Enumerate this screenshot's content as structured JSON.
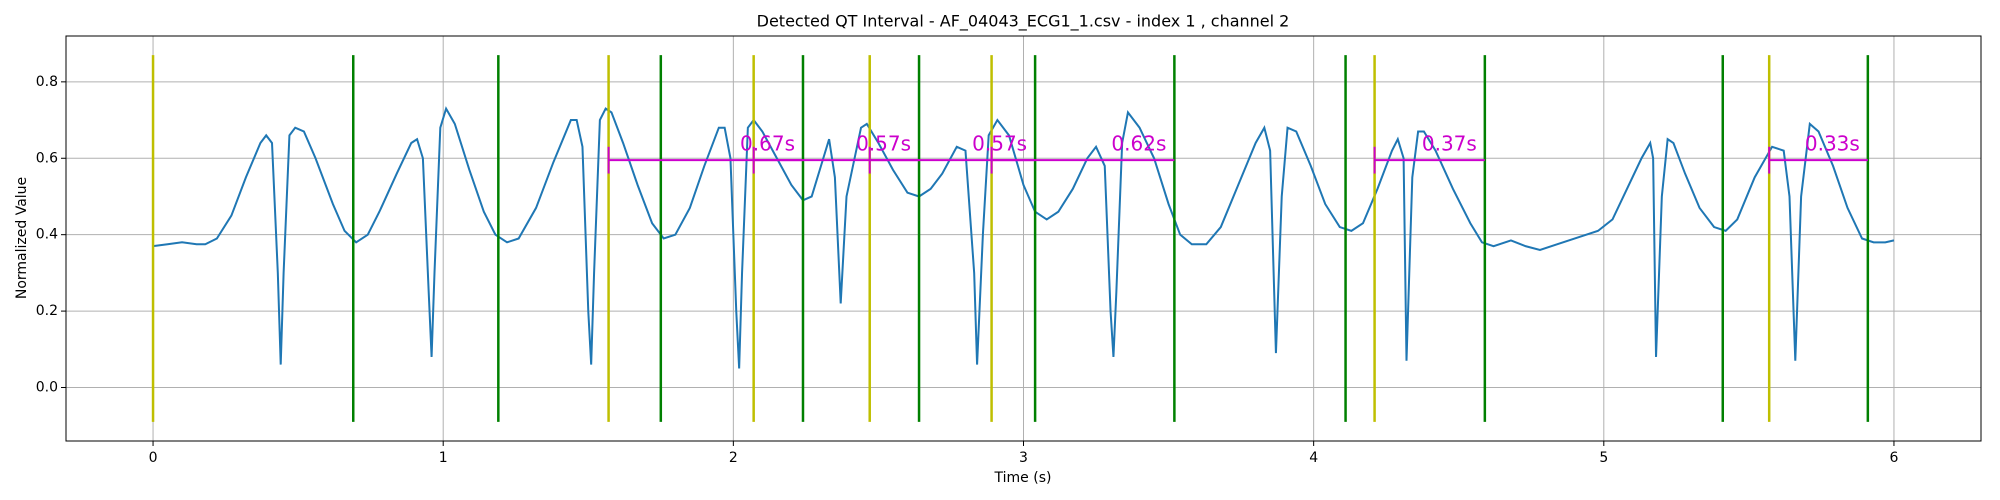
{
  "chart_data": {
    "type": "line",
    "title": "Detected QT Interval - AF_04043_ECG1_1.csv - index 1 , channel 2",
    "x_label": "Time (s)",
    "y_label": "Normalized Value",
    "color": "#1f77b4",
    "x": [
      0,
      0.05,
      0.1,
      0.15,
      0.18,
      0.22,
      0.27,
      0.32,
      0.37,
      0.39,
      0.41,
      0.43,
      0.44,
      0.45,
      0.47,
      0.49,
      0.52,
      0.56,
      0.62,
      0.66,
      0.7,
      0.74,
      0.78,
      0.84,
      0.89,
      0.91,
      0.93,
      0.95,
      0.96,
      0.97,
      0.99,
      1.01,
      1.04,
      1.09,
      1.14,
      1.18,
      1.22,
      1.26,
      1.32,
      1.38,
      1.44,
      1.46,
      1.48,
      1.5,
      1.51,
      1.52,
      1.54,
      1.56,
      1.58,
      1.62,
      1.67,
      1.72,
      1.76,
      1.8,
      1.85,
      1.9,
      1.95,
      1.97,
      1.99,
      2.01,
      2.02,
      2.03,
      2.05,
      2.07,
      2.1,
      2.15,
      2.2,
      2.24,
      2.27,
      2.31,
      2.33,
      2.35,
      2.37,
      2.39,
      2.44,
      2.46,
      2.5,
      2.55,
      2.6,
      2.64,
      2.68,
      2.72,
      2.77,
      2.8,
      2.83,
      2.84,
      2.86,
      2.88,
      2.91,
      2.95,
      3.0,
      3.04,
      3.08,
      3.12,
      3.17,
      3.22,
      3.25,
      3.28,
      3.3,
      3.31,
      3.32,
      3.34,
      3.36,
      3.4,
      3.45,
      3.5,
      3.54,
      3.58,
      3.63,
      3.68,
      3.74,
      3.8,
      3.83,
      3.85,
      3.87,
      3.89,
      3.91,
      3.94,
      3.99,
      4.04,
      4.09,
      4.13,
      4.17,
      4.22,
      4.27,
      4.29,
      4.31,
      4.32,
      4.34,
      4.36,
      4.38,
      4.42,
      4.48,
      4.54,
      4.58,
      4.62,
      4.68,
      4.73,
      4.78,
      4.84,
      4.92,
      4.98,
      5.03,
      5.08,
      5.13,
      5.16,
      5.17,
      5.18,
      5.2,
      5.22,
      5.24,
      5.28,
      5.33,
      5.38,
      5.42,
      5.46,
      5.52,
      5.58,
      5.62,
      5.64,
      5.66,
      5.68,
      5.71,
      5.74,
      5.79,
      5.84,
      5.89,
      5.93,
      5.97,
      6.0
    ],
    "values": [
      0.37,
      0.375,
      0.38,
      0.375,
      0.375,
      0.39,
      0.45,
      0.55,
      0.64,
      0.66,
      0.64,
      0.3,
      0.06,
      0.3,
      0.66,
      0.68,
      0.67,
      0.6,
      0.48,
      0.41,
      0.38,
      0.4,
      0.46,
      0.56,
      0.64,
      0.65,
      0.6,
      0.25,
      0.08,
      0.3,
      0.68,
      0.73,
      0.69,
      0.57,
      0.46,
      0.4,
      0.38,
      0.39,
      0.47,
      0.59,
      0.7,
      0.7,
      0.63,
      0.2,
      0.06,
      0.3,
      0.7,
      0.73,
      0.72,
      0.64,
      0.53,
      0.43,
      0.39,
      0.4,
      0.47,
      0.58,
      0.68,
      0.68,
      0.6,
      0.2,
      0.05,
      0.3,
      0.68,
      0.7,
      0.67,
      0.6,
      0.53,
      0.49,
      0.5,
      0.6,
      0.65,
      0.55,
      0.22,
      0.5,
      0.68,
      0.69,
      0.64,
      0.57,
      0.51,
      0.5,
      0.52,
      0.56,
      0.63,
      0.62,
      0.3,
      0.06,
      0.4,
      0.66,
      0.7,
      0.66,
      0.53,
      0.46,
      0.44,
      0.46,
      0.52,
      0.6,
      0.63,
      0.58,
      0.2,
      0.08,
      0.25,
      0.64,
      0.72,
      0.68,
      0.6,
      0.48,
      0.4,
      0.375,
      0.375,
      0.42,
      0.53,
      0.64,
      0.68,
      0.62,
      0.09,
      0.5,
      0.68,
      0.67,
      0.58,
      0.48,
      0.42,
      0.41,
      0.43,
      0.52,
      0.62,
      0.65,
      0.6,
      0.07,
      0.55,
      0.67,
      0.67,
      0.62,
      0.52,
      0.43,
      0.38,
      0.37,
      0.385,
      0.37,
      0.36,
      0.375,
      0.395,
      0.41,
      0.44,
      0.52,
      0.6,
      0.64,
      0.6,
      0.08,
      0.5,
      0.65,
      0.64,
      0.56,
      0.47,
      0.42,
      0.41,
      0.44,
      0.55,
      0.63,
      0.62,
      0.5,
      0.07,
      0.5,
      0.69,
      0.67,
      0.58,
      0.47,
      0.39,
      0.38,
      0.38,
      0.385
    ],
    "q_onsets": {
      "color": "#bfbf00",
      "x": [
        0,
        1.57,
        2.07,
        2.47,
        2.89,
        4.21,
        5.57
      ]
    },
    "t_ends": {
      "color": "#008000",
      "x": [
        0.69,
        1.19,
        1.75,
        2.24,
        2.64,
        3.04,
        3.52,
        4.11,
        4.59,
        5.41,
        5.91
      ]
    },
    "marker_range": [
      -0.09,
      0.87
    ],
    "qt_intervals": {
      "color": "#cc00cc",
      "y": 0.595,
      "tick_range": [
        0.56,
        0.63
      ],
      "starts": [
        1.57,
        2.07,
        2.47,
        2.89,
        4.21,
        5.57
      ],
      "ends": [
        2.24,
        2.64,
        3.04,
        3.52,
        4.59,
        5.91
      ],
      "values": [
        0.67,
        0.57,
        0.57,
        0.62,
        0.37,
        0.33
      ],
      "value_labels": [
        "0.67s",
        "0.57s",
        "0.57s",
        "0.62s",
        "0.37s",
        "0.33s"
      ]
    },
    "xlim": [
      -0.3,
      6.3
    ],
    "ylim": [
      -0.14,
      0.92
    ],
    "xticks": [
      0,
      1,
      2,
      3,
      4,
      5,
      6
    ],
    "yticks": [
      {
        "value": 0,
        "label": "0.0"
      },
      0.2,
      0.4,
      0.6,
      0.8
    ],
    "grid": true
  }
}
